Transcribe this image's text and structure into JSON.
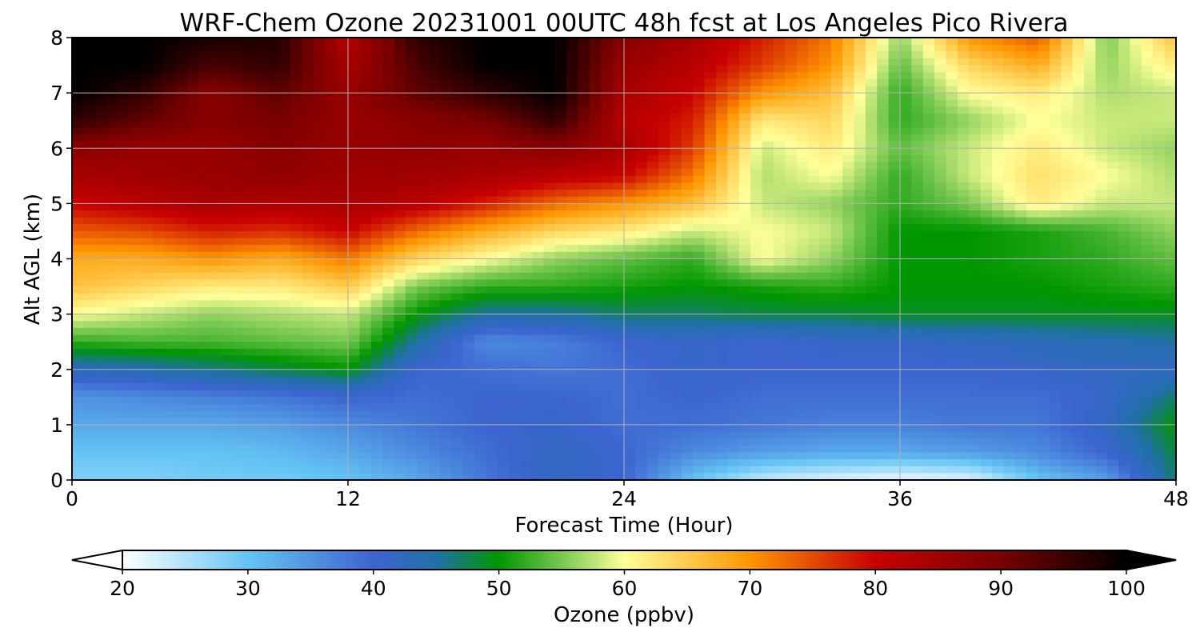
{
  "chart_data": {
    "type": "heatmap",
    "title": "WRF-Chem Ozone  20231001 00UTC 48h fcst at Los Angeles Pico Rivera",
    "xlabel": "Forecast Time (Hour)",
    "ylabel": "Alt AGL (km)",
    "xlim": [
      0,
      48
    ],
    "ylim": [
      0,
      8
    ],
    "x_ticks": [
      0,
      12,
      24,
      36,
      48
    ],
    "y_ticks": [
      0,
      1,
      2,
      3,
      4,
      5,
      6,
      7,
      8
    ],
    "grid": true,
    "x": [
      0,
      3,
      6,
      9,
      12,
      15,
      18,
      21,
      24,
      27,
      30,
      33,
      36,
      39,
      42,
      45,
      48
    ],
    "y": [
      0,
      0.5,
      1,
      1.5,
      2,
      2.5,
      3,
      3.5,
      4,
      4.5,
      5,
      5.5,
      6,
      6.5,
      7,
      7.5,
      8
    ],
    "z": [
      [
        28,
        28,
        29,
        29,
        30,
        33,
        38,
        42,
        40,
        30,
        24,
        22,
        21,
        22,
        30,
        34,
        47
      ],
      [
        30,
        30,
        30,
        31,
        33,
        36,
        39,
        42,
        40,
        36,
        34,
        33,
        33,
        34,
        36,
        40,
        48
      ],
      [
        33,
        33,
        33,
        34,
        36,
        38,
        40,
        41,
        39,
        39,
        38,
        37,
        37,
        38,
        38,
        42,
        50
      ],
      [
        35,
        36,
        37,
        38,
        40,
        39,
        40,
        40,
        39,
        40,
        39,
        39,
        39,
        39,
        39,
        41,
        47
      ],
      [
        43,
        44,
        46,
        48,
        50,
        40,
        39,
        38,
        39,
        41,
        40,
        40,
        40,
        40,
        41,
        42,
        42
      ],
      [
        52,
        53,
        53,
        54,
        55,
        45,
        36,
        37,
        40,
        41,
        40,
        41,
        41,
        42,
        43,
        44,
        45
      ],
      [
        60,
        58,
        56,
        57,
        58,
        50,
        45,
        45,
        47,
        47,
        48,
        48,
        49,
        49,
        49,
        49,
        49
      ],
      [
        66,
        64,
        62,
        62,
        65,
        55,
        52,
        52,
        51,
        50,
        51,
        52,
        50,
        50,
        50,
        51,
        52
      ],
      [
        68,
        68,
        70,
        68,
        72,
        64,
        60,
        56,
        54,
        52,
        60,
        56,
        50,
        50,
        51,
        52,
        54
      ],
      [
        74,
        75,
        78,
        77,
        80,
        73,
        68,
        64,
        62,
        58,
        60,
        58,
        50,
        50,
        51,
        53,
        56
      ],
      [
        80,
        82,
        84,
        83,
        84,
        82,
        78,
        73,
        70,
        66,
        58,
        56,
        52,
        55,
        62,
        58,
        58
      ],
      [
        84,
        85,
        86,
        87,
        85,
        85,
        84,
        82,
        80,
        72,
        57,
        60,
        52,
        58,
        63,
        60,
        57
      ],
      [
        88,
        86,
        86,
        88,
        86,
        87,
        86,
        88,
        84,
        76,
        58,
        62,
        54,
        58,
        62,
        58,
        56
      ],
      [
        96,
        92,
        88,
        90,
        86,
        88,
        90,
        96,
        82,
        78,
        62,
        64,
        52,
        56,
        60,
        58,
        58
      ],
      [
        100,
        96,
        88,
        92,
        86,
        92,
        96,
        100,
        84,
        80,
        70,
        66,
        52,
        60,
        62,
        57,
        58
      ],
      [
        100,
        100,
        94,
        96,
        84,
        94,
        100,
        100,
        86,
        82,
        76,
        70,
        54,
        64,
        68,
        56,
        62
      ],
      [
        100,
        100,
        98,
        97,
        82,
        96,
        100,
        100,
        88,
        84,
        78,
        72,
        56,
        70,
        74,
        55,
        66
      ]
    ],
    "colorbar": {
      "label": "Ozone  (ppbv)",
      "min": 20,
      "max": 100,
      "ticks": [
        20,
        30,
        40,
        50,
        60,
        70,
        80,
        90,
        100
      ],
      "extend": "both"
    },
    "colormap": [
      [
        20,
        "#ffffff"
      ],
      [
        30,
        "#64c4f4"
      ],
      [
        40,
        "#3c64d0"
      ],
      [
        45,
        "#2070a8"
      ],
      [
        50,
        "#009600"
      ],
      [
        55,
        "#78c850"
      ],
      [
        60,
        "#ffff9a"
      ],
      [
        70,
        "#ff9600"
      ],
      [
        80,
        "#c80000"
      ],
      [
        90,
        "#780000"
      ],
      [
        100,
        "#000000"
      ]
    ]
  }
}
